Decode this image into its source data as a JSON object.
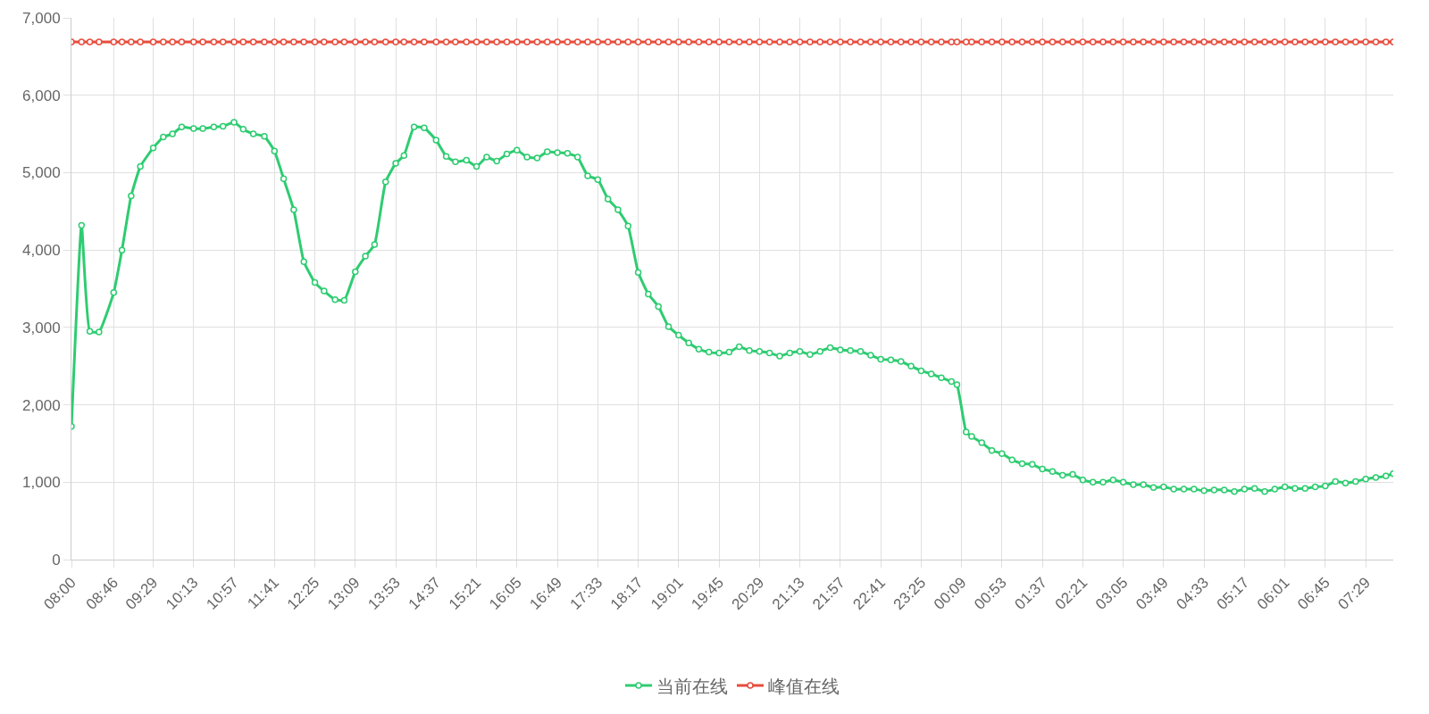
{
  "chart_data": {
    "type": "line",
    "x": [
      "--01-01T08:00",
      "--01-01T08:11",
      "--01-01T08:20",
      "--01-01T08:30",
      "--01-01T08:46",
      "--01-01T08:55",
      "--01-01T09:05",
      "--01-01T09:15",
      "--01-01T09:29",
      "--01-01T09:40",
      "--01-01T09:50",
      "--01-01T10:00",
      "--01-01T10:13",
      "--01-01T10:23",
      "--01-01T10:35",
      "--01-01T10:45",
      "--01-01T10:57",
      "--01-01T11:07",
      "--01-01T11:18",
      "--01-01T11:30",
      "--01-01T11:41",
      "--01-01T11:51",
      "--01-01T12:02",
      "--01-01T12:13",
      "--01-01T12:25",
      "--01-01T12:35",
      "--01-01T12:47",
      "--01-01T12:57",
      "--01-01T13:09",
      "--01-01T13:20",
      "--01-01T13:30",
      "--01-01T13:42",
      "--01-01T13:53",
      "--01-01T14:02",
      "--01-01T14:13",
      "--01-01T14:24",
      "--01-01T14:37",
      "--01-01T14:48",
      "--01-01T14:58",
      "--01-01T15:10",
      "--01-01T15:21",
      "--01-01T15:32",
      "--01-01T15:43",
      "--01-01T15:54",
      "--01-01T16:05",
      "--01-01T16:16",
      "--01-01T16:27",
      "--01-01T16:38",
      "--01-01T16:49",
      "--01-01T17:00",
      "--01-01T17:11",
      "--01-01T17:22",
      "--01-01T17:33",
      "--01-01T17:44",
      "--01-01T17:55",
      "--01-01T18:06",
      "--01-01T18:17",
      "--01-01T18:28",
      "--01-01T18:39",
      "--01-01T18:50",
      "--01-01T19:01",
      "--01-01T19:12",
      "--01-01T19:23",
      "--01-01T19:34",
      "--01-01T19:45",
      "--01-01T19:56",
      "--01-01T20:07",
      "--01-01T20:18",
      "--01-01T20:29",
      "--01-01T20:40",
      "--01-01T20:51",
      "--01-01T21:02",
      "--01-01T21:13",
      "--01-01T21:24",
      "--01-01T21:35",
      "--01-01T21:46",
      "--01-01T21:57",
      "--01-01T22:08",
      "--01-01T22:19",
      "--01-01T22:30",
      "--01-01T22:41",
      "--01-01T22:52",
      "--01-01T23:03",
      "--01-01T23:14",
      "--01-01T23:25",
      "--01-01T23:36",
      "--01-01T23:47",
      "--01-01T23:58",
      "--01-02T00:04",
      "--01-02T00:14",
      "--01-02T00:20",
      "--01-02T00:31",
      "--01-02T00:42",
      "--01-02T00:53",
      "--01-02T01:04",
      "--01-02T01:15",
      "--01-02T01:26",
      "--01-02T01:37",
      "--01-02T01:48",
      "--01-02T01:59",
      "--01-02T02:10",
      "--01-02T02:21",
      "--01-02T02:32",
      "--01-02T02:43",
      "--01-02T02:54",
      "--01-02T03:05",
      "--01-02T03:16",
      "--01-02T03:27",
      "--01-02T03:38",
      "--01-02T03:49",
      "--01-02T04:00",
      "--01-02T04:11",
      "--01-02T04:22",
      "--01-02T04:33",
      "--01-02T04:44",
      "--01-02T04:55",
      "--01-02T05:06",
      "--01-02T05:17",
      "--01-02T05:28",
      "--01-02T05:39",
      "--01-02T05:50",
      "--01-02T06:01",
      "--01-02T06:12",
      "--01-02T06:23",
      "--01-02T06:34",
      "--01-02T06:45",
      "--01-02T06:56",
      "--01-02T07:07",
      "--01-02T07:18",
      "--01-02T07:29",
      "--01-02T07:40",
      "--01-02T07:51",
      "--01-02T07:59"
    ],
    "series": [
      {
        "name": "当前在线",
        "color": "#2ecc71",
        "values": [
          1720,
          4320,
          2950,
          2940,
          3450,
          4000,
          4700,
          5080,
          5320,
          5460,
          5500,
          5590,
          5570,
          5570,
          5590,
          5600,
          5650,
          5560,
          5500,
          5470,
          5280,
          4920,
          4520,
          3850,
          3580,
          3470,
          3360,
          3350,
          3720,
          3920,
          4070,
          4880,
          5120,
          5220,
          5590,
          5580,
          5420,
          5210,
          5140,
          5160,
          5080,
          5200,
          5150,
          5240,
          5290,
          5200,
          5190,
          5270,
          5260,
          5250,
          5200,
          4960,
          4910,
          4660,
          4520,
          4310,
          3710,
          3430,
          3270,
          3010,
          2900,
          2800,
          2720,
          2680,
          2670,
          2680,
          2750,
          2700,
          2690,
          2670,
          2630,
          2670,
          2690,
          2650,
          2690,
          2740,
          2710,
          2700,
          2690,
          2640,
          2590,
          2580,
          2560,
          2500,
          2440,
          2400,
          2350,
          2300,
          2260,
          1650,
          1590,
          1510,
          1410,
          1370,
          1290,
          1240,
          1230,
          1170,
          1140,
          1090,
          1100,
          1030,
          1000,
          1000,
          1030,
          1000,
          970,
          970,
          930,
          940,
          910,
          910,
          910,
          890,
          900,
          900,
          880,
          910,
          920,
          880,
          910,
          940,
          920,
          920,
          940,
          950,
          1010,
          990,
          1010,
          1040,
          1060,
          1080,
          1110
        ]
      },
      {
        "name": "峰值在线",
        "color": "#e74c3c",
        "values": [
          6690,
          6690,
          6690,
          6690,
          6690,
          6690,
          6690,
          6690,
          6690,
          6690,
          6690,
          6690,
          6690,
          6690,
          6690,
          6690,
          6690,
          6690,
          6690,
          6690,
          6690,
          6690,
          6690,
          6690,
          6690,
          6690,
          6690,
          6690,
          6690,
          6690,
          6690,
          6690,
          6690,
          6690,
          6690,
          6690,
          6690,
          6690,
          6690,
          6690,
          6690,
          6690,
          6690,
          6690,
          6690,
          6690,
          6690,
          6690,
          6690,
          6690,
          6690,
          6690,
          6690,
          6690,
          6690,
          6690,
          6690,
          6690,
          6690,
          6690,
          6690,
          6690,
          6690,
          6690,
          6690,
          6690,
          6690,
          6690,
          6690,
          6690,
          6690,
          6690,
          6690,
          6690,
          6690,
          6690,
          6690,
          6690,
          6690,
          6690,
          6690,
          6690,
          6690,
          6690,
          6690,
          6690,
          6690,
          6690,
          6690,
          6690,
          6690,
          6690,
          6690,
          6690,
          6690,
          6690,
          6690,
          6690,
          6690,
          6690,
          6690,
          6690,
          6690,
          6690,
          6690,
          6690,
          6690,
          6690,
          6690,
          6690,
          6690,
          6690,
          6690,
          6690,
          6690,
          6690,
          6690,
          6690,
          6690,
          6690,
          6690,
          6690,
          6690,
          6690,
          6690,
          6690,
          6690,
          6690,
          6690,
          6690,
          6690,
          6690,
          6690
        ]
      }
    ],
    "xlim": [
      "--01-01T08:00",
      "--01-02T07:59"
    ],
    "xticks": [
      {
        "value": "--01-01T08:00",
        "label": "08:00"
      },
      {
        "value": "--01-01T08:46",
        "label": "08:46"
      },
      {
        "value": "--01-01T09:29",
        "label": "09:29"
      },
      {
        "value": "--01-01T10:13",
        "label": "10:13"
      },
      {
        "value": "--01-01T10:57",
        "label": "10:57"
      },
      {
        "value": "--01-01T11:41",
        "label": "11:41"
      },
      {
        "value": "--01-01T12:25",
        "label": "12:25"
      },
      {
        "value": "--01-01T13:09",
        "label": "13:09"
      },
      {
        "value": "--01-01T13:53",
        "label": "13:53"
      },
      {
        "value": "--01-01T14:37",
        "label": "14:37"
      },
      {
        "value": "--01-01T15:21",
        "label": "15:21"
      },
      {
        "value": "--01-01T16:05",
        "label": "16:05"
      },
      {
        "value": "--01-01T16:49",
        "label": "16:49"
      },
      {
        "value": "--01-01T17:33",
        "label": "17:33"
      },
      {
        "value": "--01-01T18:17",
        "label": "18:17"
      },
      {
        "value": "--01-01T19:01",
        "label": "19:01"
      },
      {
        "value": "--01-01T19:45",
        "label": "19:45"
      },
      {
        "value": "--01-01T20:29",
        "label": "20:29"
      },
      {
        "value": "--01-01T21:13",
        "label": "21:13"
      },
      {
        "value": "--01-01T21:57",
        "label": "21:57"
      },
      {
        "value": "--01-01T22:41",
        "label": "22:41"
      },
      {
        "value": "--01-01T23:25",
        "label": "23:25"
      },
      {
        "value": "--01-02T00:09",
        "label": "00:09"
      },
      {
        "value": "--01-02T00:53",
        "label": "00:53"
      },
      {
        "value": "--01-02T01:37",
        "label": "01:37"
      },
      {
        "value": "--01-02T02:21",
        "label": "02:21"
      },
      {
        "value": "--01-02T03:05",
        "label": "03:05"
      },
      {
        "value": "--01-02T03:49",
        "label": "03:49"
      },
      {
        "value": "--01-02T04:33",
        "label": "04:33"
      },
      {
        "value": "--01-02T05:17",
        "label": "05:17"
      },
      {
        "value": "--01-02T06:01",
        "label": "06:01"
      },
      {
        "value": "--01-02T06:45",
        "label": "06:45"
      },
      {
        "value": "--01-02T07:29",
        "label": "07:29"
      }
    ],
    "ylim": [
      0,
      7000
    ],
    "yticks": [
      {
        "value": 0,
        "label": "0"
      },
      {
        "value": 1000,
        "label": "1,000"
      },
      {
        "value": 2000,
        "label": "2,000"
      },
      {
        "value": 3000,
        "label": "3,000"
      },
      {
        "value": 4000,
        "label": "4,000"
      },
      {
        "value": 5000,
        "label": "5,000"
      },
      {
        "value": 6000,
        "label": "6,000"
      },
      {
        "value": 7000,
        "label": "7,000"
      }
    ],
    "grid": true,
    "legend": "bottom",
    "marker": "circle",
    "line_style": "solid"
  }
}
